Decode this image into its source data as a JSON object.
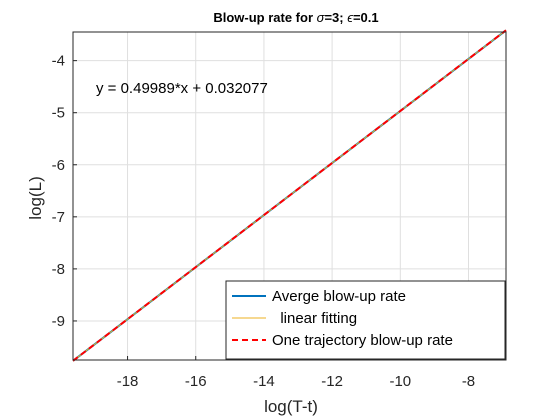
{
  "chart_data": {
    "type": "line",
    "title": "Blow-up rate for σ=3; ϵ=0.1",
    "title_parts": {
      "prefix": "Blow-up rate for ",
      "sym1": "σ",
      "mid": "=3; ",
      "sym2": "ϵ",
      "suffix": "=0.1"
    },
    "xlabel": "log(T-t)",
    "ylabel": "log(L)",
    "xlim": [
      -19.6,
      -6.9
    ],
    "ylim": [
      -9.75,
      -3.45
    ],
    "xticks": [
      -18,
      -16,
      -14,
      -12,
      -10,
      -8
    ],
    "yticks": [
      -9,
      -8,
      -7,
      -6,
      -5,
      -4
    ],
    "grid": true,
    "legend_position": "bottom-right",
    "annotation": "y = 0.49989*x + 0.032077",
    "series": [
      {
        "name": "Averge blow-up rate",
        "color": "#0072BD",
        "style": "solid",
        "x": [
          -19.6,
          -6.9
        ],
        "y": [
          -9.766,
          -3.417
        ]
      },
      {
        "name": "  linear fitting",
        "color": "#EDB120",
        "style": "solid",
        "x": [
          -19.6,
          -6.9
        ],
        "y": [
          -9.766,
          -3.417
        ]
      },
      {
        "name": "One trajectory blow-up rate",
        "color": "#FF0000",
        "style": "dashed",
        "x": [
          -19.6,
          -6.9
        ],
        "y": [
          -9.766,
          -3.417
        ]
      }
    ]
  }
}
